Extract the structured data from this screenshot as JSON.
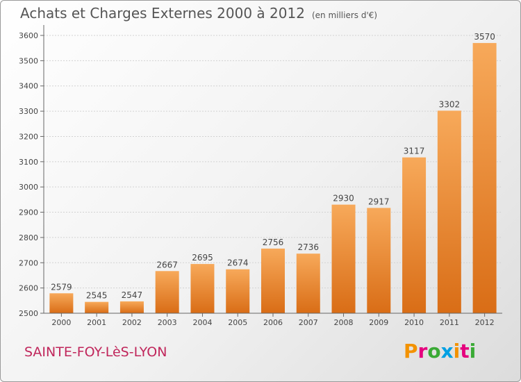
{
  "title": "Achats et Charges Externes 2000 à 2012",
  "unit": "(en milliers d'€)",
  "city": "SAINTE-FOY-LèS-LYON",
  "brand": {
    "letters": [
      "P",
      "r",
      "o",
      "x",
      "i",
      "t",
      "i"
    ],
    "colors": [
      "#f39200",
      "#e5007e",
      "#3aaa35",
      "#00a0e3",
      "#f39200",
      "#e5007e",
      "#3aaa35"
    ]
  },
  "colors": {
    "bar_light": "#f7a95a",
    "bar_dark": "#d96d16",
    "axis": "#666666",
    "grid": "#d2d2d2"
  },
  "chart_data": {
    "type": "bar",
    "categories": [
      "2000",
      "2001",
      "2002",
      "2003",
      "2004",
      "2005",
      "2006",
      "2007",
      "2008",
      "2009",
      "2010",
      "2011",
      "2012"
    ],
    "values": [
      2579,
      2545,
      2547,
      2667,
      2695,
      2674,
      2756,
      2736,
      2930,
      2917,
      3117,
      3302,
      3570
    ],
    "yticks": [
      2500,
      2600,
      2700,
      2800,
      2900,
      3000,
      3100,
      3200,
      3300,
      3400,
      3500,
      3600
    ],
    "ylim": [
      2500,
      3600
    ],
    "grid": true
  }
}
